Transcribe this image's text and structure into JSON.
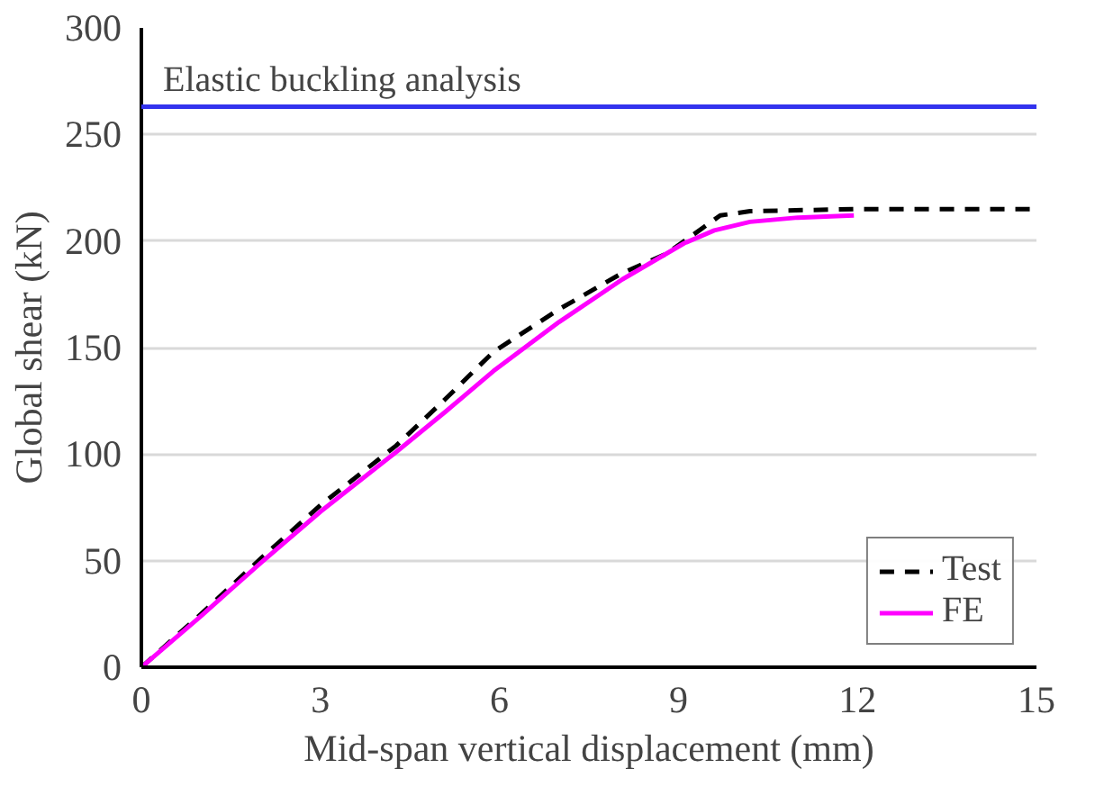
{
  "chart_data": {
    "type": "line",
    "xlabel": "Mid-span vertical displacement (mm)",
    "ylabel": "Global shear (kN)",
    "xlim": [
      0,
      15
    ],
    "ylim": [
      0,
      300
    ],
    "xticks": [
      0,
      3,
      6,
      9,
      12,
      15
    ],
    "yticks": [
      0,
      50,
      100,
      150,
      200,
      250,
      300
    ],
    "grid": "y",
    "legend": "bottom right",
    "series": [
      {
        "name": "Test",
        "color": "#000000",
        "line_style": "dashed",
        "x": [
          0,
          1,
          2,
          3,
          4.27,
          5.1,
          5.9,
          7,
          8.06,
          8.8,
          9.2,
          9.7,
          10.2,
          12,
          15
        ],
        "values": [
          0,
          25,
          51,
          76,
          104,
          126,
          148,
          168,
          185,
          194,
          202,
          212,
          214,
          215,
          215
        ]
      },
      {
        "name": "FE",
        "color": "#ff00ff",
        "line_style": "solid",
        "x": [
          0,
          1,
          2,
          3,
          4.27,
          5.1,
          5.9,
          7,
          8.06,
          9.1,
          9.6,
          10.2,
          11,
          11.94
        ],
        "values": [
          0,
          24,
          49,
          73,
          101,
          120,
          139,
          162,
          182,
          199,
          205,
          209,
          211,
          212
        ]
      }
    ],
    "ref_lines": [
      {
        "axis": "y",
        "value": 263,
        "label": "Elastic buckling analysis",
        "color": "#3333ee"
      }
    ]
  }
}
